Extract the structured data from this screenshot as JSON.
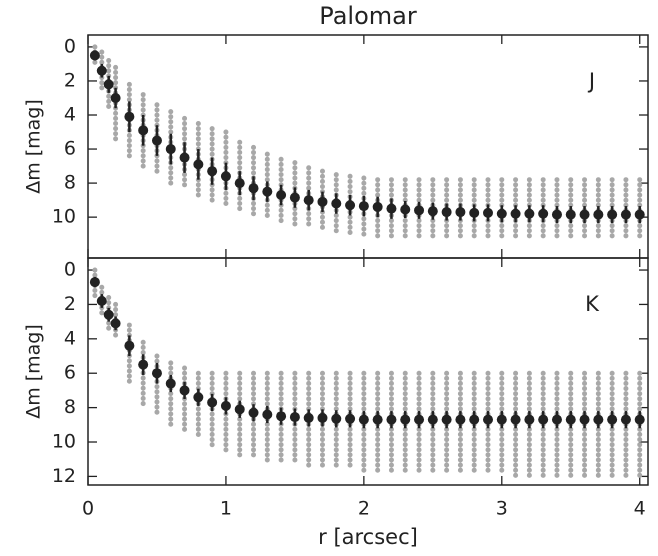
{
  "chart_data": [
    {
      "type": "errorbar",
      "title": "Palomar",
      "label": "J",
      "ylabel": "Δm [mag]",
      "x": [
        0.05,
        0.1,
        0.15,
        0.2,
        0.3,
        0.4,
        0.5,
        0.6,
        0.7,
        0.8,
        0.9,
        1.0,
        1.1,
        1.2,
        1.3,
        1.4,
        1.5,
        1.6,
        1.7,
        1.8,
        1.9,
        2.0,
        2.1,
        2.2,
        2.3,
        2.4,
        2.5,
        2.6,
        2.7,
        2.8,
        2.9,
        3.0,
        3.1,
        3.2,
        3.3,
        3.4,
        3.5,
        3.6,
        3.7,
        3.8,
        3.9,
        4.0
      ],
      "values": [
        0.5,
        1.4,
        2.2,
        3.0,
        4.1,
        4.9,
        5.5,
        6.0,
        6.5,
        6.9,
        7.3,
        7.6,
        8.0,
        8.3,
        8.5,
        8.7,
        8.85,
        9.0,
        9.1,
        9.2,
        9.3,
        9.35,
        9.4,
        9.5,
        9.55,
        9.6,
        9.65,
        9.7,
        9.7,
        9.75,
        9.75,
        9.8,
        9.8,
        9.8,
        9.8,
        9.85,
        9.85,
        9.85,
        9.85,
        9.85,
        9.85,
        9.85
      ],
      "errors": [
        0.3,
        0.4,
        0.5,
        0.6,
        0.9,
        0.9,
        0.9,
        0.9,
        0.9,
        0.9,
        0.8,
        0.8,
        0.7,
        0.7,
        0.6,
        0.6,
        0.6,
        0.6,
        0.6,
        0.6,
        0.6,
        0.6,
        0.6,
        0.6,
        0.5,
        0.5,
        0.5,
        0.5,
        0.5,
        0.5,
        0.5,
        0.5,
        0.5,
        0.5,
        0.5,
        0.5,
        0.5,
        0.5,
        0.5,
        0.5,
        0.5,
        0.5
      ],
      "range_min": [
        0,
        0.3,
        0.8,
        1.2,
        2.2,
        2.8,
        3.4,
        3.8,
        4.2,
        4.5,
        4.8,
        5.0,
        5.6,
        5.9,
        6.3,
        6.6,
        6.8,
        7.1,
        7.3,
        7.5,
        7.6,
        7.7,
        7.8,
        7.8,
        7.8,
        7.8,
        7.8,
        7.8,
        7.8,
        7.8,
        7.8,
        7.8,
        7.8,
        7.8,
        7.8,
        7.8,
        7.8,
        7.8,
        7.8,
        7.8,
        7.8,
        7.8
      ],
      "range_max": [
        1,
        2.5,
        3.5,
        5.6,
        6.5,
        7.0,
        7.5,
        8.0,
        8.3,
        8.7,
        9.0,
        9.3,
        9.6,
        9.9,
        10.1,
        10.3,
        10.4,
        10.6,
        10.8,
        10.9,
        11.0,
        11.0,
        11.1,
        11.1,
        11.2,
        11.2,
        11.2,
        11.2,
        11.2,
        11.2,
        11.2,
        11.3,
        11.3,
        11.3,
        11.3,
        11.3,
        11.3,
        11.3,
        11.3,
        11.3,
        11.3,
        11.3
      ],
      "color": "#222222",
      "range_color": "#a8a8a8",
      "xlim": [
        0,
        4.06
      ],
      "ylim": [
        -0.7,
        12.4
      ],
      "y_inverted": true,
      "yticks": [
        0,
        2,
        4,
        6,
        8,
        10
      ]
    },
    {
      "type": "errorbar",
      "label": "K",
      "ylabel": "Δm [mag]",
      "xlabel": "r [arcsec]",
      "x": [
        0.05,
        0.1,
        0.15,
        0.2,
        0.3,
        0.4,
        0.5,
        0.6,
        0.7,
        0.8,
        0.9,
        1.0,
        1.1,
        1.2,
        1.3,
        1.4,
        1.5,
        1.6,
        1.7,
        1.8,
        1.9,
        2.0,
        2.1,
        2.2,
        2.3,
        2.4,
        2.5,
        2.6,
        2.7,
        2.8,
        2.9,
        3.0,
        3.1,
        3.2,
        3.3,
        3.4,
        3.5,
        3.6,
        3.7,
        3.8,
        3.9,
        4.0
      ],
      "values": [
        0.7,
        1.8,
        2.6,
        3.1,
        4.4,
        5.5,
        6.0,
        6.6,
        7.0,
        7.4,
        7.7,
        7.9,
        8.1,
        8.3,
        8.4,
        8.5,
        8.55,
        8.6,
        8.6,
        8.65,
        8.65,
        8.7,
        8.7,
        8.7,
        8.7,
        8.7,
        8.7,
        8.7,
        8.7,
        8.7,
        8.7,
        8.7,
        8.7,
        8.7,
        8.7,
        8.7,
        8.7,
        8.7,
        8.7,
        8.7,
        8.7,
        8.7
      ],
      "errors": [
        0.3,
        0.4,
        0.4,
        0.4,
        0.6,
        0.6,
        0.6,
        0.5,
        0.5,
        0.5,
        0.5,
        0.5,
        0.5,
        0.5,
        0.5,
        0.5,
        0.5,
        0.5,
        0.5,
        0.5,
        0.5,
        0.5,
        0.5,
        0.5,
        0.5,
        0.5,
        0.5,
        0.5,
        0.5,
        0.5,
        0.5,
        0.5,
        0.5,
        0.5,
        0.5,
        0.5,
        0.5,
        0.5,
        0.5,
        0.5,
        0.5,
        0.5
      ],
      "range_min": [
        0,
        1,
        1.6,
        2.0,
        3.2,
        4.2,
        5.0,
        5.4,
        5.7,
        6.0,
        6.0,
        6.0,
        6.0,
        6.0,
        6.0,
        6.0,
        6.0,
        6.0,
        6.0,
        6.0,
        6.0,
        6.0,
        6.0,
        6.0,
        6.0,
        6.0,
        6.0,
        6.0,
        6.0,
        6.0,
        6.0,
        6.0,
        6.0,
        6.0,
        6.0,
        6.0,
        6.0,
        6.0,
        6.0,
        6.0,
        6.0,
        6.0
      ],
      "range_max": [
        1.5,
        2.6,
        3.4,
        4.0,
        6.5,
        7.8,
        8.5,
        9.0,
        9.4,
        9.8,
        10.2,
        10.5,
        10.8,
        11.0,
        11.2,
        11.3,
        11.3,
        11.4,
        11.5,
        11.5,
        11.6,
        11.7,
        11.8,
        11.8,
        11.9,
        11.9,
        11.9,
        11.9,
        11.9,
        11.9,
        11.9,
        11.9,
        12.0,
        12.0,
        12.0,
        12.0,
        12.0,
        12.0,
        12.0,
        12.0,
        12.0,
        12.0
      ],
      "color": "#222222",
      "range_color": "#a8a8a8",
      "xlim": [
        0,
        4.06
      ],
      "ylim": [
        -0.7,
        12.5
      ],
      "y_inverted": true,
      "yticks": [
        0,
        2,
        4,
        6,
        8,
        10,
        12
      ],
      "xticks": [
        0,
        1,
        2,
        3,
        4
      ]
    }
  ]
}
